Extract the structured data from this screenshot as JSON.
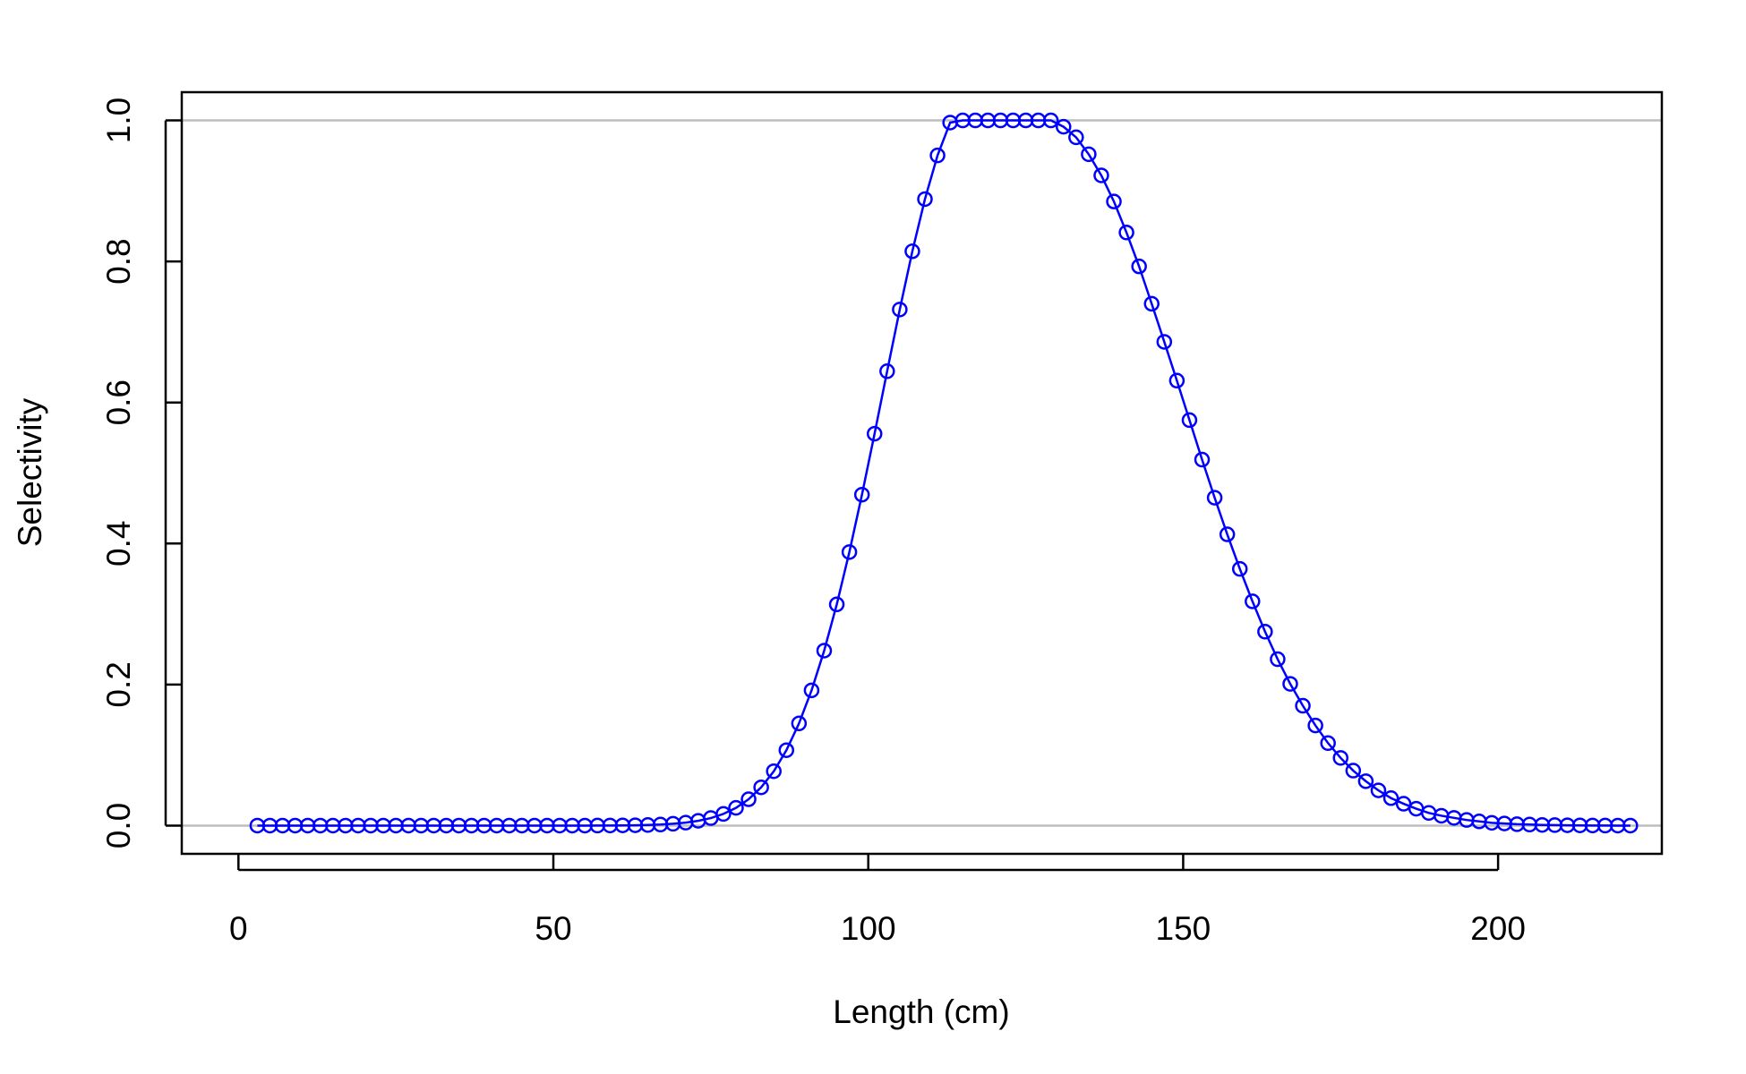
{
  "chart_data": {
    "type": "line",
    "title": "",
    "xlabel": "Length (cm)",
    "ylabel": "Selectivity",
    "xlim": [
      -9,
      226
    ],
    "ylim": [
      -0.04,
      1.04
    ],
    "xticks": [
      0,
      50,
      100,
      150,
      200
    ],
    "yticks": [
      0.0,
      0.2,
      0.4,
      0.6,
      0.8,
      1.0
    ],
    "ytick_labels": [
      "0.0",
      "0.2",
      "0.4",
      "0.6",
      "0.8",
      "1.0"
    ],
    "reference_lines": [
      0,
      1
    ],
    "series": [
      {
        "markers": "open-circle",
        "line": true,
        "x": [
          3,
          5,
          7,
          9,
          11,
          13,
          15,
          17,
          19,
          21,
          23,
          25,
          27,
          29,
          31,
          33,
          35,
          37,
          39,
          41,
          43,
          45,
          47,
          49,
          51,
          53,
          55,
          57,
          59,
          61,
          63,
          65,
          67,
          69,
          71,
          73,
          75,
          77,
          79,
          81,
          83,
          85,
          87,
          89,
          91,
          93,
          95,
          97,
          99,
          101,
          103,
          105,
          107,
          109,
          111,
          113,
          115,
          117,
          119,
          121,
          123,
          125,
          127,
          129,
          131,
          133,
          135,
          137,
          139,
          141,
          143,
          145,
          147,
          149,
          151,
          153,
          155,
          157,
          159,
          161,
          163,
          165,
          167,
          169,
          171,
          173,
          175,
          177,
          179,
          181,
          183,
          185,
          187,
          189,
          191,
          193,
          195,
          197,
          199,
          201,
          203,
          205,
          207,
          209,
          211,
          213,
          215,
          217,
          219,
          221
        ],
        "y": [
          0,
          0,
          0,
          0,
          0,
          0,
          0,
          0,
          0,
          0,
          0,
          0,
          0,
          0,
          0,
          0,
          0,
          0,
          0,
          0,
          0,
          0,
          0,
          0,
          0,
          0,
          0,
          0.0001,
          0.0002,
          0.0003,
          0.0005,
          0.0009,
          0.0015,
          0.0026,
          0.0042,
          0.0068,
          0.0107,
          0.0166,
          0.0252,
          0.0374,
          0.0543,
          0.0771,
          0.1069,
          0.1449,
          0.1918,
          0.2481,
          0.3137,
          0.3879,
          0.4693,
          0.5557,
          0.6443,
          0.7318,
          0.8144,
          0.8884,
          0.9503,
          0.9969,
          1.0,
          1.0,
          1.0,
          1.0,
          1.0,
          1.0,
          1.0,
          1.0,
          0.991,
          0.976,
          0.952,
          0.922,
          0.885,
          0.841,
          0.793,
          0.74,
          0.686,
          0.631,
          0.575,
          0.519,
          0.465,
          0.413,
          0.364,
          0.318,
          0.275,
          0.236,
          0.201,
          0.17,
          0.142,
          0.117,
          0.096,
          0.078,
          0.063,
          0.05,
          0.039,
          0.031,
          0.024,
          0.018,
          0.014,
          0.011,
          0.008,
          0.006,
          0.004,
          0.003,
          0.002,
          0.0015,
          0.001,
          0.0007,
          0.0005,
          0.0003,
          0.0002,
          0.0001,
          0,
          0
        ]
      }
    ],
    "colors": {
      "series": "#0000ff",
      "reference_line": "#bebebe",
      "axis": "#000000"
    }
  }
}
